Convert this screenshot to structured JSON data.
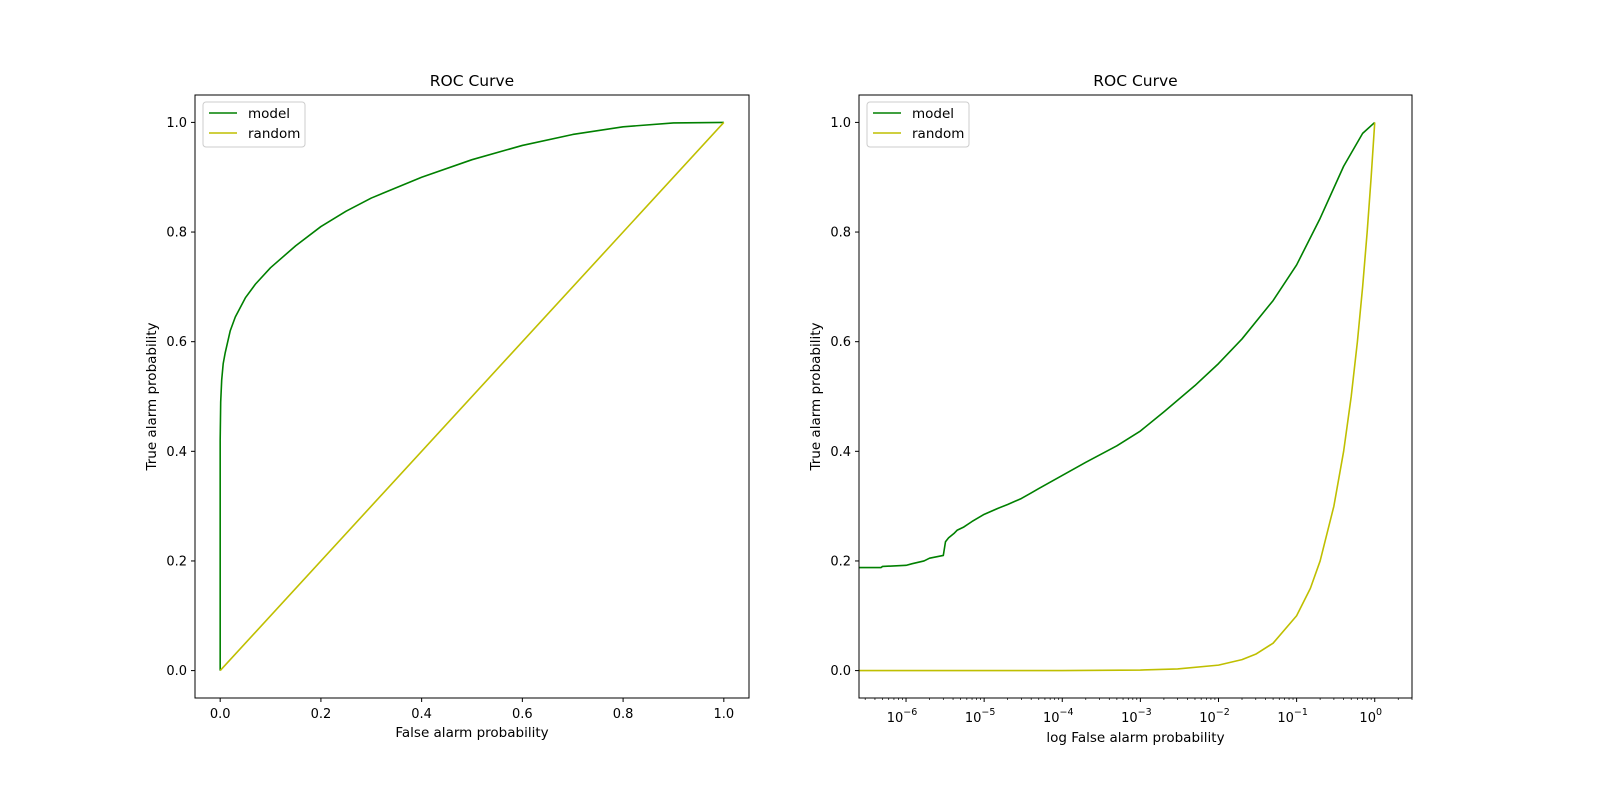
{
  "chart_data": [
    {
      "type": "line",
      "title": "ROC Curve",
      "xlabel": "False alarm probability",
      "ylabel": "True alarm probability",
      "xscale": "linear",
      "xlim": [
        -0.05,
        1.05
      ],
      "ylim": [
        -0.05,
        1.05
      ],
      "xticks": [
        0,
        0.2,
        0.4,
        0.6,
        0.8,
        1.0
      ],
      "xtick_labels": [
        "0.0",
        "0.2",
        "0.4",
        "0.6",
        "0.8",
        "1.0"
      ],
      "yticks": [
        0,
        0.2,
        0.4,
        0.6,
        0.8,
        1.0
      ],
      "ytick_labels": [
        "0.0",
        "0.2",
        "0.4",
        "0.6",
        "0.8",
        "1.0"
      ],
      "grid": false,
      "legend": "top-left",
      "series": [
        {
          "name": "model",
          "color": "#008000",
          "x": [
            0,
            0,
            0.001,
            0.003,
            0.006,
            0.01,
            0.02,
            0.03,
            0.05,
            0.07,
            0.1,
            0.15,
            0.2,
            0.25,
            0.3,
            0.4,
            0.5,
            0.6,
            0.7,
            0.8,
            0.9,
            1.0
          ],
          "y": [
            0,
            0.42,
            0.49,
            0.53,
            0.56,
            0.58,
            0.62,
            0.645,
            0.68,
            0.705,
            0.735,
            0.775,
            0.81,
            0.838,
            0.862,
            0.9,
            0.932,
            0.958,
            0.978,
            0.992,
            0.999,
            1.0
          ]
        },
        {
          "name": "random",
          "color": "#bfbf00",
          "x": [
            0,
            1.0
          ],
          "y": [
            0,
            1.0
          ]
        }
      ]
    },
    {
      "type": "line",
      "title": "ROC Curve",
      "xlabel": "log False alarm probability",
      "ylabel": "True alarm probability",
      "xscale": "log",
      "xlim": [
        2.5e-07,
        3.0
      ],
      "ylim": [
        -0.05,
        1.05
      ],
      "xticks": [
        1e-06,
        1e-05,
        0.0001,
        0.001,
        0.01,
        0.1,
        1
      ],
      "xtick_bases": [
        "10",
        "10",
        "10",
        "10",
        "10",
        "10",
        "10"
      ],
      "xtick_exponents": [
        "−6",
        "−5",
        "−4",
        "−3",
        "−2",
        "−1",
        "0"
      ],
      "yticks": [
        0,
        0.2,
        0.4,
        0.6,
        0.8,
        1.0
      ],
      "ytick_labels": [
        "0.0",
        "0.2",
        "0.4",
        "0.6",
        "0.8",
        "1.0"
      ],
      "grid": false,
      "legend": "top-left",
      "series": [
        {
          "name": "model",
          "color": "#008000",
          "x": [
            2.5e-07,
            4.8e-07,
            5e-07,
            1e-06,
            1.2e-06,
            1.7e-06,
            2e-06,
            3e-06,
            3.2e-06,
            3.5e-06,
            4.1e-06,
            4.5e-06,
            5.5e-06,
            7e-06,
            1e-05,
            1.5e-05,
            2e-05,
            3e-05,
            4e-05,
            5e-05,
            0.0001,
            0.0002,
            0.0005,
            0.001,
            0.002,
            0.005,
            0.01,
            0.02,
            0.05,
            0.1,
            0.2,
            0.4,
            0.7,
            1.0
          ],
          "y": [
            0.188,
            0.188,
            0.19,
            0.192,
            0.195,
            0.2,
            0.205,
            0.21,
            0.235,
            0.242,
            0.25,
            0.256,
            0.262,
            0.272,
            0.285,
            0.296,
            0.303,
            0.314,
            0.324,
            0.332,
            0.356,
            0.38,
            0.41,
            0.437,
            0.472,
            0.52,
            0.56,
            0.605,
            0.675,
            0.74,
            0.825,
            0.92,
            0.98,
            1.0
          ]
        },
        {
          "name": "random",
          "color": "#bfbf00",
          "x": [
            2.5e-07,
            1e-05,
            0.0001,
            0.001,
            0.003,
            0.01,
            0.02,
            0.03,
            0.05,
            0.1,
            0.15,
            0.2,
            0.3,
            0.4,
            0.5,
            0.6,
            0.7,
            0.8,
            0.9,
            1.0
          ],
          "y": [
            0,
            0,
            0,
            0.001,
            0.003,
            0.01,
            0.02,
            0.03,
            0.05,
            0.1,
            0.15,
            0.2,
            0.3,
            0.4,
            0.5,
            0.6,
            0.7,
            0.8,
            0.9,
            1.0
          ]
        }
      ]
    }
  ]
}
